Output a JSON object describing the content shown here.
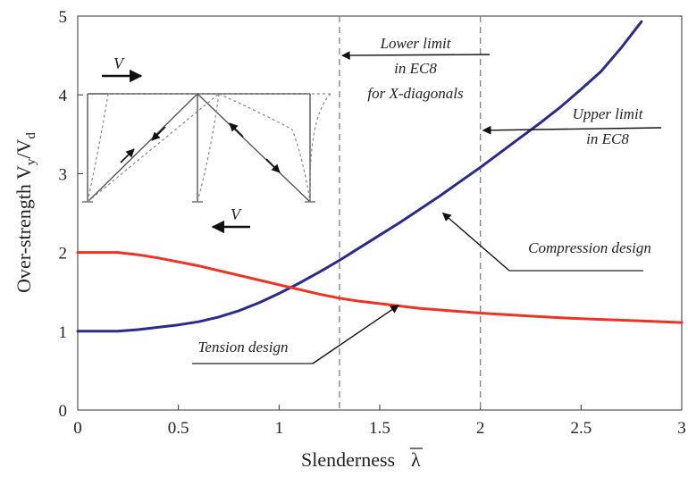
{
  "chart_data": {
    "type": "line",
    "xlabel": "Slenderness",
    "xlabel_symbol": "λ",
    "ylabel": "Over-strength",
    "ylabel_math": {
      "base": "V",
      "sub1": "y",
      "sep": "/",
      "base2": "V",
      "sub2": "d"
    },
    "xlim": [
      0,
      3
    ],
    "ylim": [
      0,
      5
    ],
    "x_ticks": [
      "0",
      "0.5",
      "1",
      "1.5",
      "2",
      "2.5",
      "3"
    ],
    "y_ticks": [
      "0",
      "1",
      "2",
      "3",
      "4",
      "5"
    ],
    "grid": false,
    "series": [
      {
        "name": "Compression design",
        "color": "#2b2a8f",
        "x": [
          0,
          0.2,
          0.3,
          0.4,
          0.5,
          0.6,
          0.7,
          0.8,
          0.9,
          1.0,
          1.1,
          1.2,
          1.3,
          1.4,
          1.5,
          1.6,
          1.7,
          1.8,
          1.9,
          2.0,
          2.1,
          2.2,
          2.3,
          2.4,
          2.5,
          2.6,
          2.7,
          2.8
        ],
        "y": [
          1.0,
          1.0,
          1.02,
          1.05,
          1.08,
          1.12,
          1.18,
          1.26,
          1.36,
          1.48,
          1.61,
          1.75,
          1.9,
          2.06,
          2.22,
          2.38,
          2.55,
          2.72,
          2.9,
          3.08,
          3.27,
          3.46,
          3.65,
          3.85,
          4.07,
          4.3,
          4.6,
          4.93
        ]
      },
      {
        "name": "Tension design",
        "color": "#ee3224",
        "x": [
          0,
          0.2,
          0.3,
          0.4,
          0.5,
          0.6,
          0.7,
          0.8,
          0.9,
          1.0,
          1.1,
          1.2,
          1.3,
          1.4,
          1.5,
          1.6,
          1.7,
          1.8,
          1.9,
          2.0,
          2.2,
          2.4,
          2.6,
          2.8,
          3.0
        ],
        "y": [
          2.0,
          2.0,
          1.97,
          1.93,
          1.88,
          1.83,
          1.77,
          1.71,
          1.65,
          1.59,
          1.53,
          1.47,
          1.42,
          1.38,
          1.35,
          1.32,
          1.29,
          1.27,
          1.25,
          1.23,
          1.2,
          1.17,
          1.15,
          1.13,
          1.11
        ]
      }
    ],
    "vlines": [
      {
        "x": 1.3,
        "style": "dashed",
        "color": "#888888"
      },
      {
        "x": 2.0,
        "style": "dashed",
        "color": "#888888"
      }
    ],
    "annotations": [
      {
        "lines": [
          "Lower limit",
          "in EC8",
          "for X-diagonals"
        ],
        "target_x": 1.3,
        "target_y": 4.5
      },
      {
        "lines": [
          "Upper limit",
          "in EC8"
        ],
        "target_x": 2.0,
        "target_y": 3.55
      },
      {
        "lines": [
          "Compression design"
        ],
        "target_x": 1.8,
        "target_y": 2.5
      },
      {
        "lines": [
          "Tension design"
        ],
        "target_x": 1.58,
        "target_y": 1.33
      }
    ],
    "frame_inset": {
      "description_labels": [
        "V",
        "V"
      ]
    }
  }
}
